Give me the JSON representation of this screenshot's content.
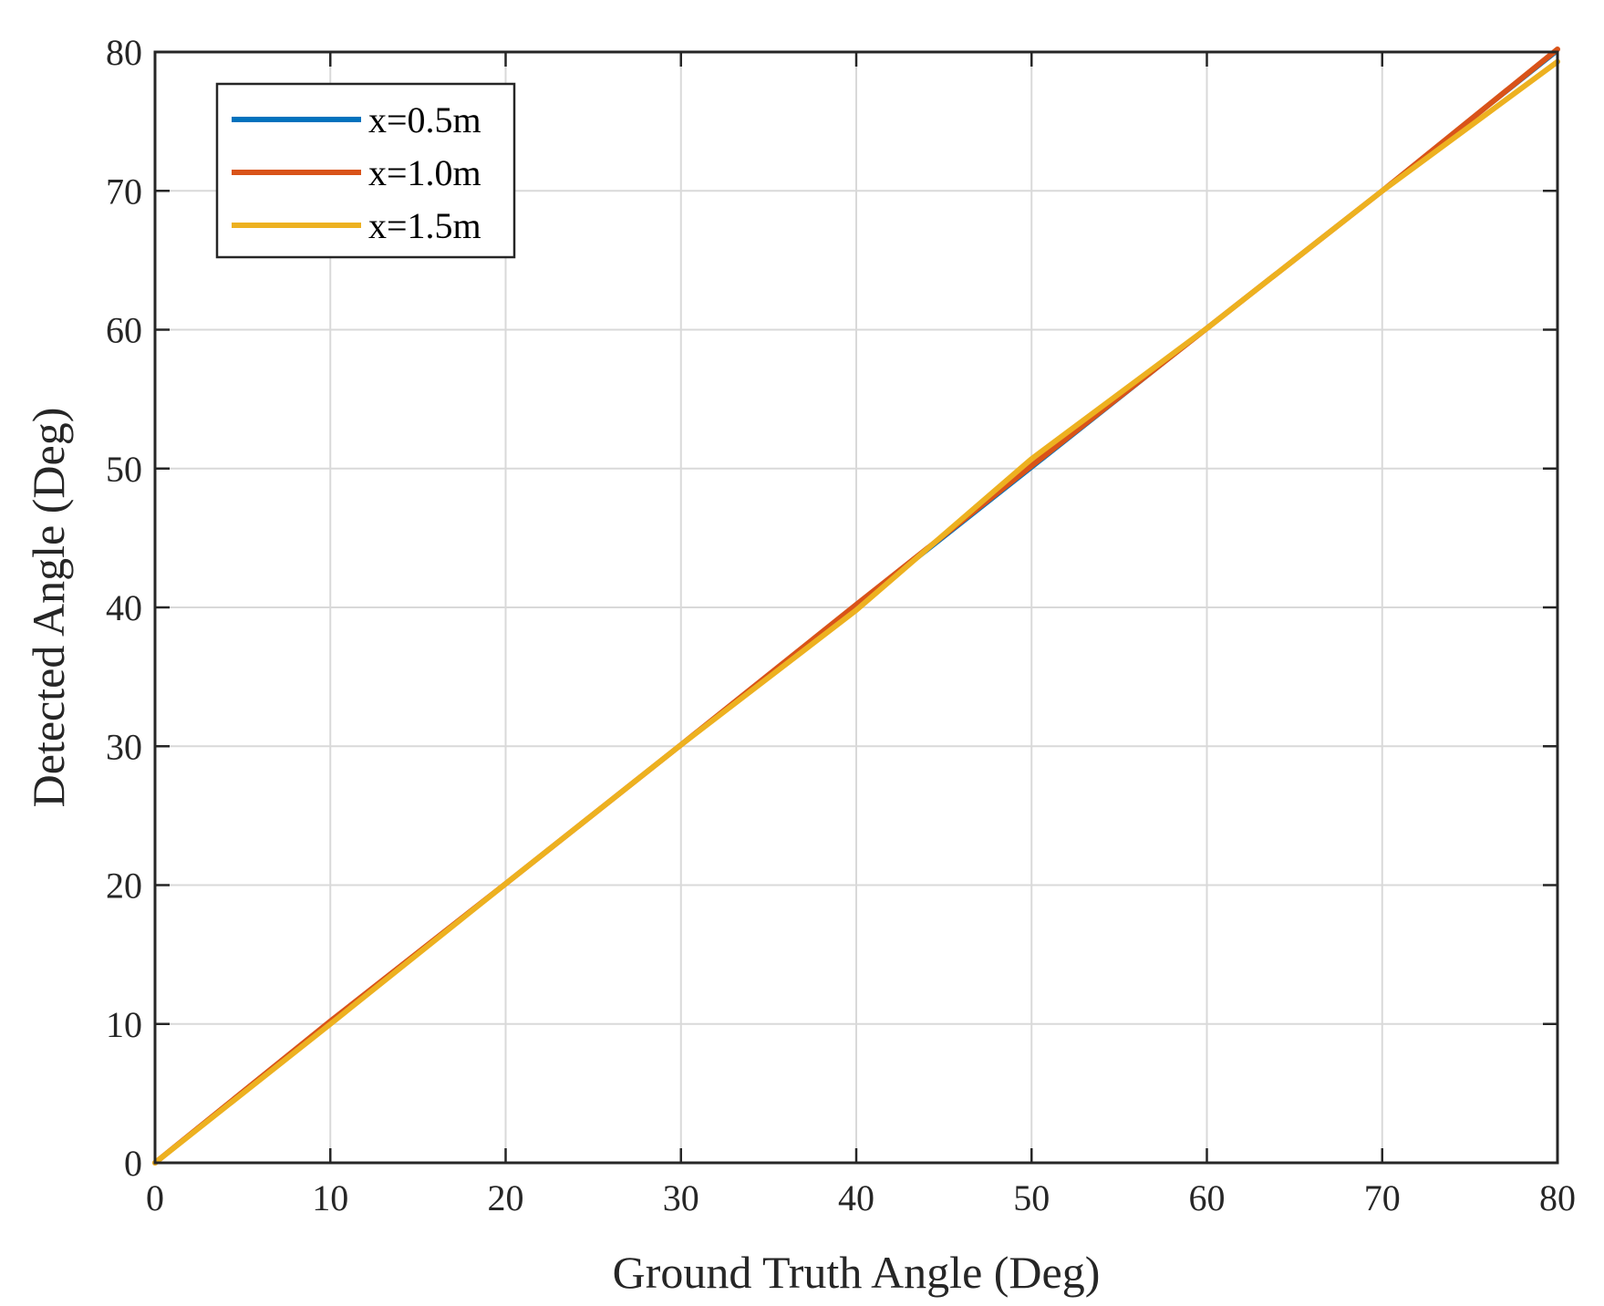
{
  "chart_data": {
    "type": "line",
    "title": "",
    "xlabel": "Ground Truth Angle (Deg)",
    "ylabel": "Detected Angle (Deg)",
    "xlim": [
      0,
      80
    ],
    "ylim": [
      0,
      80
    ],
    "xticks": [
      0,
      10,
      20,
      30,
      40,
      50,
      60,
      70,
      80
    ],
    "yticks": [
      0,
      10,
      20,
      30,
      40,
      50,
      60,
      70,
      80
    ],
    "grid": true,
    "legend_position": "top-left",
    "series": [
      {
        "name": "x=0.5m",
        "color": "#0072BD",
        "x": [
          0,
          10,
          20,
          30,
          40,
          50,
          60,
          70,
          80
        ],
        "y": [
          0,
          10,
          20,
          30,
          40,
          50,
          60,
          70,
          80
        ]
      },
      {
        "name": "x=1.0m",
        "color": "#D95319",
        "x": [
          0,
          10,
          20,
          30,
          40,
          50,
          60,
          70,
          80
        ],
        "y": [
          0,
          10.2,
          20.1,
          30.1,
          40.2,
          50.2,
          60.1,
          70,
          80.2
        ]
      },
      {
        "name": "x=1.5m",
        "color": "#EDB120",
        "x": [
          0,
          10,
          20,
          30,
          40,
          50,
          60,
          70,
          80
        ],
        "y": [
          0,
          10,
          20.1,
          30.1,
          39.8,
          50.7,
          60.1,
          70,
          79.3
        ]
      }
    ]
  }
}
